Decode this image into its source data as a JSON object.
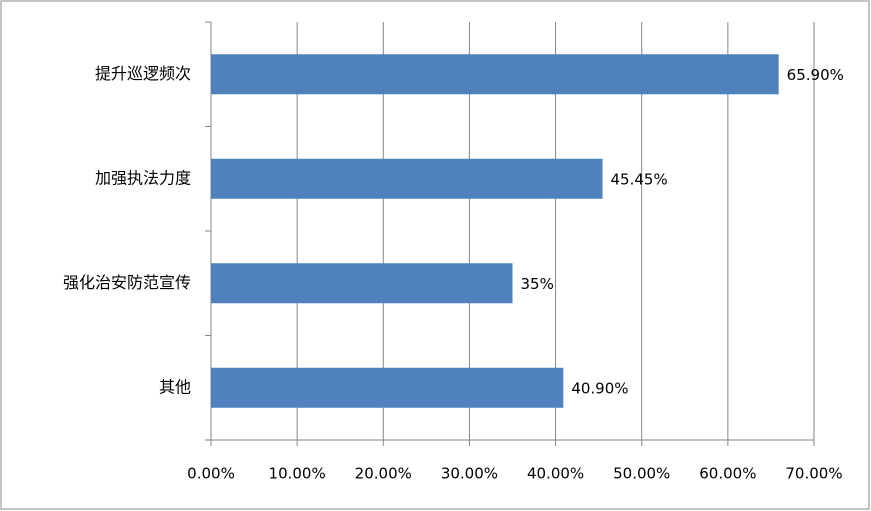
{
  "chart_data": {
    "type": "bar",
    "orientation": "horizontal",
    "categories": [
      "提升巡逻频次",
      "加强执法力度",
      "强化治安防范宣传",
      "其他"
    ],
    "values": [
      65.9,
      45.45,
      35,
      40.9
    ],
    "value_labels": [
      "65.90%",
      "45.45%",
      "35%",
      "40.90%"
    ],
    "color": "#4f81bd",
    "xlim": [
      0,
      70
    ],
    "xticks": [
      {
        "value": 0,
        "label": "0.00%"
      },
      {
        "value": 10,
        "label": "10.00%"
      },
      {
        "value": 20,
        "label": "20.00%"
      },
      {
        "value": 30,
        "label": "30.00%"
      },
      {
        "value": 40,
        "label": "40.00%"
      },
      {
        "value": 50,
        "label": "50.00%"
      },
      {
        "value": 60,
        "label": "60.00%"
      },
      {
        "value": 70,
        "label": "70.00%"
      }
    ],
    "grid": true
  }
}
